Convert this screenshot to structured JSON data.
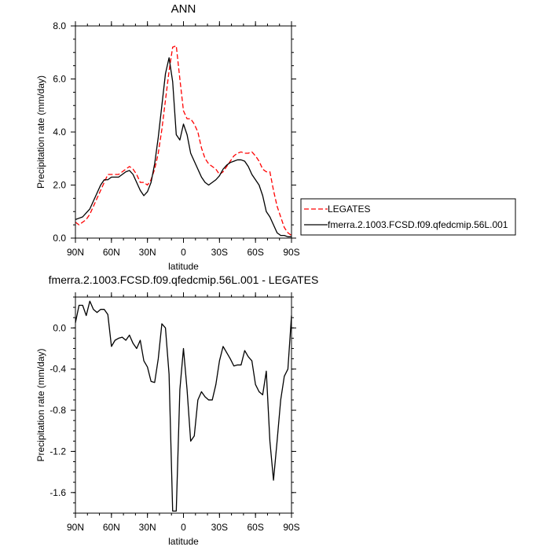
{
  "chart_data": [
    {
      "type": "line",
      "title": "ANN",
      "xlabel": "latitude",
      "ylabel": "Precipitation rate (mm/day)",
      "xlim": [
        90,
        -90
      ],
      "ylim": [
        0,
        8
      ],
      "x_ticks": [
        90,
        60,
        30,
        0,
        -30,
        -60,
        -90
      ],
      "x_tick_labels": [
        "90N",
        "60N",
        "30N",
        "0",
        "30S",
        "60S",
        "90S"
      ],
      "y_ticks": [
        0,
        2,
        4,
        6,
        8
      ],
      "y_tick_labels": [
        "0.0",
        "2.0",
        "4.0",
        "6.0",
        "8.0"
      ],
      "legend": "right",
      "series": [
        {
          "name": "LEGATES",
          "color": "#ff0000",
          "dash": "dashed",
          "x": [
            90,
            87,
            84,
            81,
            78,
            75,
            72,
            69,
            66,
            63,
            60,
            57,
            54,
            51,
            48,
            45,
            42,
            39,
            36,
            33,
            30,
            27,
            24,
            21,
            18,
            15,
            12,
            9,
            6,
            3,
            0,
            -3,
            -6,
            -9,
            -12,
            -15,
            -18,
            -21,
            -24,
            -27,
            -30,
            -33,
            -36,
            -39,
            -42,
            -45,
            -48,
            -51,
            -54,
            -57,
            -60,
            -63,
            -66,
            -69,
            -72,
            -75,
            -78,
            -81,
            -84,
            -87,
            -90
          ],
          "y": [
            0.6,
            0.5,
            0.6,
            0.7,
            0.9,
            1.2,
            1.5,
            1.8,
            2.1,
            2.4,
            2.4,
            2.4,
            2.4,
            2.5,
            2.6,
            2.7,
            2.6,
            2.4,
            2.1,
            2.1,
            2.0,
            2.2,
            2.6,
            3.2,
            4.1,
            5.2,
            6.3,
            7.2,
            7.25,
            6.0,
            4.8,
            4.5,
            4.5,
            4.3,
            4.0,
            3.4,
            3.0,
            2.8,
            2.7,
            2.6,
            2.4,
            2.5,
            2.7,
            2.9,
            3.1,
            3.2,
            3.25,
            3.2,
            3.2,
            3.25,
            3.1,
            2.9,
            2.6,
            2.5,
            2.5,
            1.8,
            1.2,
            0.8,
            0.4,
            0.2,
            0.1
          ]
        },
        {
          "name": "fmerra.2.1003.FCSD.f09.qfedcmip.56L.001",
          "color": "#000000",
          "dash": "solid",
          "x": [
            90,
            87,
            84,
            81,
            78,
            75,
            72,
            69,
            66,
            63,
            60,
            57,
            54,
            51,
            48,
            45,
            42,
            39,
            36,
            33,
            30,
            27,
            24,
            21,
            18,
            15,
            12,
            9,
            6,
            3,
            0,
            -3,
            -6,
            -9,
            -12,
            -15,
            -18,
            -21,
            -24,
            -27,
            -30,
            -33,
            -36,
            -39,
            -42,
            -45,
            -48,
            -51,
            -54,
            -57,
            -60,
            -63,
            -66,
            -69,
            -72,
            -75,
            -78,
            -81,
            -84,
            -87,
            -90
          ],
          "y": [
            0.7,
            0.75,
            0.8,
            0.95,
            1.1,
            1.4,
            1.7,
            2.0,
            2.2,
            2.2,
            2.3,
            2.3,
            2.3,
            2.4,
            2.5,
            2.55,
            2.4,
            2.1,
            1.8,
            1.6,
            1.75,
            2.1,
            2.8,
            3.8,
            5.0,
            6.2,
            6.8,
            5.9,
            3.9,
            3.7,
            4.3,
            3.9,
            3.2,
            2.9,
            2.6,
            2.3,
            2.1,
            2.0,
            2.1,
            2.2,
            2.35,
            2.6,
            2.75,
            2.85,
            2.9,
            2.95,
            2.95,
            2.9,
            2.7,
            2.4,
            2.2,
            2.0,
            1.6,
            1.0,
            0.8,
            0.5,
            0.2,
            0.1,
            0.1,
            0.05,
            0.05
          ]
        }
      ]
    },
    {
      "type": "line",
      "title": "fmerra.2.1003.FCSD.f09.qfedcmip.56L.001 - LEGATES",
      "xlabel": "latitude",
      "ylabel": "Precipitation rate (mm/day)",
      "xlim": [
        90,
        -90
      ],
      "ylim": [
        -1.8,
        0.3
      ],
      "x_ticks": [
        90,
        60,
        30,
        0,
        -30,
        -60,
        -90
      ],
      "x_tick_labels": [
        "90N",
        "60N",
        "30N",
        "0",
        "30S",
        "60S",
        "90S"
      ],
      "y_ticks": [
        0,
        -0.4,
        -0.8,
        -1.2,
        -1.6
      ],
      "y_tick_labels": [
        "0.0",
        "-0.4",
        "-0.8",
        "-1.2",
        "-1.6"
      ],
      "series": [
        {
          "color": "#000000",
          "dash": "solid",
          "x": [
            90,
            87,
            84,
            81,
            78,
            75,
            72,
            69,
            66,
            63,
            60,
            57,
            54,
            51,
            48,
            45,
            42,
            39,
            36,
            33,
            30,
            27,
            24,
            21,
            18,
            15,
            12,
            9,
            6,
            3,
            0,
            -3,
            -6,
            -9,
            -12,
            -15,
            -18,
            -21,
            -24,
            -27,
            -30,
            -33,
            -36,
            -39,
            -42,
            -45,
            -48,
            -51,
            -54,
            -57,
            -60,
            -63,
            -66,
            -69,
            -72,
            -75,
            -78,
            -81,
            -84,
            -87,
            -90
          ],
          "y": [
            0.05,
            0.22,
            0.22,
            0.12,
            0.26,
            0.18,
            0.15,
            0.18,
            0.18,
            0.13,
            -0.18,
            -0.12,
            -0.1,
            -0.09,
            -0.12,
            -0.07,
            -0.15,
            -0.2,
            -0.12,
            -0.32,
            -0.38,
            -0.52,
            -0.53,
            -0.3,
            0.04,
            0.0,
            -0.45,
            -1.78,
            -1.78,
            -0.6,
            -0.2,
            -0.6,
            -1.1,
            -1.05,
            -0.7,
            -0.62,
            -0.67,
            -0.7,
            -0.7,
            -0.55,
            -0.32,
            -0.18,
            -0.24,
            -0.3,
            -0.37,
            -0.36,
            -0.36,
            -0.22,
            -0.28,
            -0.32,
            -0.55,
            -0.62,
            -0.65,
            -0.42,
            -1.1,
            -1.48,
            -1.1,
            -0.7,
            -0.47,
            -0.4,
            0.12
          ]
        }
      ]
    }
  ]
}
